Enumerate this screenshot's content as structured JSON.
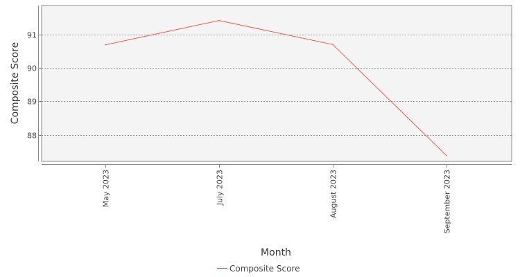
{
  "chart_data": {
    "type": "line",
    "title": "",
    "xlabel": "Month",
    "ylabel": "Composite Score",
    "categories": [
      "May 2023",
      "July 2023",
      "August 2023",
      "September 2023"
    ],
    "series": [
      {
        "name": "Composite Score",
        "values": [
          90.7,
          91.43,
          90.71,
          87.37
        ],
        "color": "#f05a4f"
      }
    ],
    "yticks": [
      88,
      89,
      90,
      91
    ],
    "ylim": [
      87.2,
      91.88
    ],
    "grid": true,
    "legend": "bottom-center",
    "colors": {
      "plot_background": "#f4f4f4",
      "plot_border": "#888888",
      "grid": "#777777"
    }
  }
}
